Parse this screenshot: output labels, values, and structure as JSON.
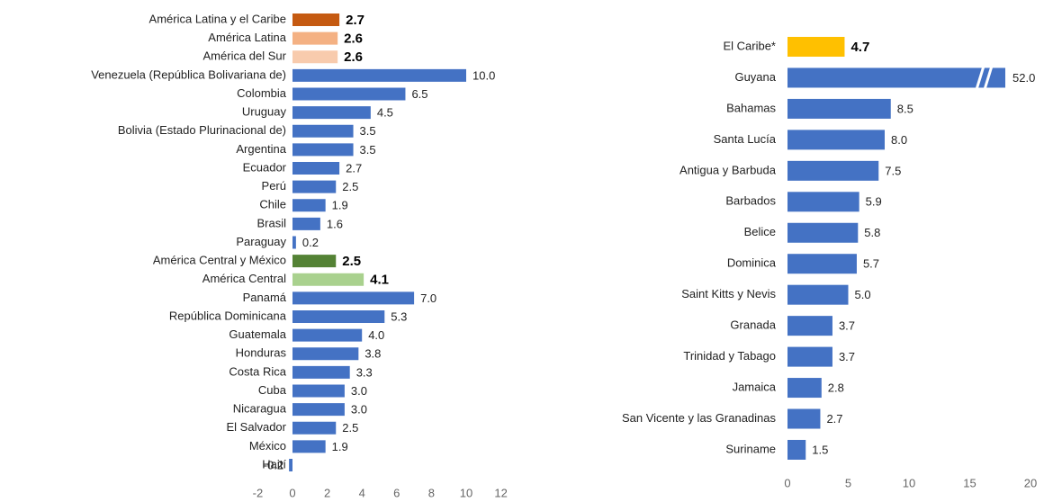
{
  "chart_data": [
    {
      "type": "barh",
      "categories": [
        "América Latina y el Caribe",
        "América Latina",
        "América del Sur",
        "Venezuela (República Bolivariana de)",
        "Colombia",
        "Uruguay",
        "Bolivia (Estado Plurinacional de)",
        "Argentina",
        "Ecuador",
        "Perú",
        "Chile",
        "Brasil",
        "Paraguay",
        "América Central y México",
        "América Central",
        "Panamá",
        "República Dominicana",
        "Guatemala",
        "Honduras",
        "Costa Rica",
        "Cuba",
        "Nicaragua",
        "El Salvador",
        "México",
        "Haití"
      ],
      "values": [
        2.7,
        2.6,
        2.6,
        10.0,
        6.5,
        4.5,
        3.5,
        3.5,
        2.7,
        2.5,
        1.9,
        1.6,
        0.2,
        2.5,
        4.1,
        7.0,
        5.3,
        4.0,
        3.8,
        3.3,
        3.0,
        3.0,
        2.5,
        1.9,
        -0.2
      ],
      "value_labels": [
        "2.7",
        "2.6",
        "2.6",
        "10.0",
        "6.5",
        "4.5",
        "3.5",
        "3.5",
        "2.7",
        "2.5",
        "1.9",
        "1.6",
        "0.2",
        "2.5",
        "4.1",
        "7.0",
        "5.3",
        "4.0",
        "3.8",
        "3.3",
        "3.0",
        "3.0",
        "2.5",
        "1.9",
        "-0.2"
      ],
      "color": "#4472c4",
      "colors": [
        "#c55a11",
        "#f4b183",
        "#f8cbad",
        "#4472c4",
        "#4472c4",
        "#4472c4",
        "#4472c4",
        "#4472c4",
        "#4472c4",
        "#4472c4",
        "#4472c4",
        "#4472c4",
        "#4472c4",
        "#548235",
        "#a9d18e",
        "#4472c4",
        "#4472c4",
        "#4472c4",
        "#4472c4",
        "#4472c4",
        "#4472c4",
        "#4472c4",
        "#4472c4",
        "#4472c4",
        "#4472c4"
      ],
      "xlim": [
        -2,
        12
      ],
      "xticks": [
        -2,
        0,
        2,
        4,
        6,
        8,
        10,
        12
      ]
    },
    {
      "type": "barh",
      "categories": [
        "El Caribe*",
        "Guyana",
        "Bahamas",
        "Santa Lucía",
        "Antigua y Barbuda",
        "Barbados",
        "Belice",
        "Dominica",
        "Saint Kitts y Nevis",
        "Granada",
        "Trinidad y Tabago",
        "Jamaica",
        "San Vicente y las Granadinas",
        "Suriname"
      ],
      "values": [
        4.7,
        52.0,
        8.5,
        8.0,
        7.5,
        5.9,
        5.8,
        5.7,
        5.0,
        3.7,
        3.7,
        2.8,
        2.7,
        1.5
      ],
      "value_labels": [
        "4.7",
        "52.0",
        "8.5",
        "8.0",
        "7.5",
        "5.9",
        "5.8",
        "5.7",
        "5.0",
        "3.7",
        "3.7",
        "2.8",
        "2.7",
        "1.5"
      ],
      "color": "#4472c4",
      "colors": [
        "#ffc000",
        "#4472c4",
        "#4472c4",
        "#4472c4",
        "#4472c4",
        "#4472c4",
        "#4472c4",
        "#4472c4",
        "#4472c4",
        "#4472c4",
        "#4472c4",
        "#4472c4",
        "#4472c4",
        "#4472c4"
      ],
      "xlim": [
        0,
        20
      ],
      "xticks": [
        0,
        5,
        10,
        15,
        20
      ]
    }
  ]
}
